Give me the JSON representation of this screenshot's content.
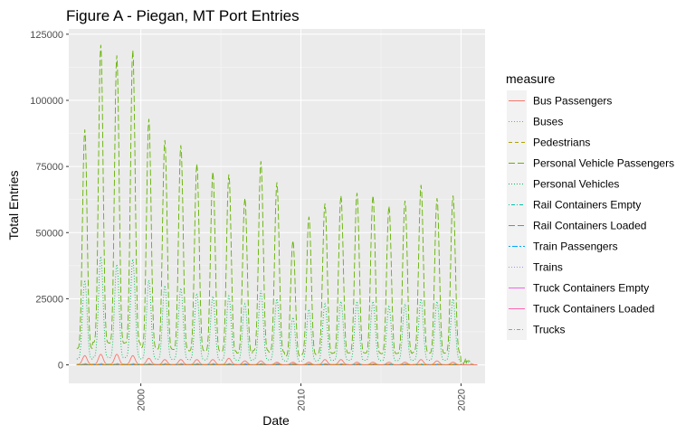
{
  "chart_data": {
    "type": "line",
    "title": "Figure A - Piegan, MT Port Entries",
    "xlabel": "Date",
    "ylabel": "Total Entries",
    "x_range": [
      1995.5,
      2021.5
    ],
    "ylim": [
      -7000,
      127000
    ],
    "x_ticks": [
      {
        "value": 2000,
        "label": "2000"
      },
      {
        "value": 2010,
        "label": "2010"
      },
      {
        "value": 2020,
        "label": "2020"
      }
    ],
    "y_ticks": [
      {
        "value": 0,
        "label": "0"
      },
      {
        "value": 25000,
        "label": "25000"
      },
      {
        "value": 50000,
        "label": "50000"
      },
      {
        "value": 75000,
        "label": "75000"
      },
      {
        "value": 100000,
        "label": "100000"
      },
      {
        "value": 125000,
        "label": "125000"
      }
    ],
    "grid": true,
    "legend": {
      "title": "measure",
      "placement": "right"
    },
    "series": [
      {
        "name": "Bus Passengers",
        "color": "#F8766D",
        "dash": "solid",
        "peaks": [
          {
            "x": 1996.5,
            "y": 3500
          },
          {
            "x": 1997.5,
            "y": 4000
          },
          {
            "x": 1998.5,
            "y": 4000
          },
          {
            "x": 1999.5,
            "y": 3500
          },
          {
            "x": 2000.5,
            "y": 2500
          },
          {
            "x": 2001.5,
            "y": 2000
          },
          {
            "x": 2002.5,
            "y": 2000
          },
          {
            "x": 2003.5,
            "y": 2000
          },
          {
            "x": 2004.5,
            "y": 2000
          },
          {
            "x": 2005.5,
            "y": 2500
          },
          {
            "x": 2006.5,
            "y": 1500
          },
          {
            "x": 2007.5,
            "y": 1500
          },
          {
            "x": 2008.5,
            "y": 1000
          },
          {
            "x": 2009.5,
            "y": 1000
          },
          {
            "x": 2010.5,
            "y": 1000
          },
          {
            "x": 2011.5,
            "y": 2000
          },
          {
            "x": 2012.5,
            "y": 2000
          },
          {
            "x": 2013.5,
            "y": 1000
          },
          {
            "x": 2014.5,
            "y": 1000
          },
          {
            "x": 2015.5,
            "y": 1000
          },
          {
            "x": 2016.5,
            "y": 1000
          },
          {
            "x": 2017.5,
            "y": 2000
          },
          {
            "x": 2018.5,
            "y": 1500
          },
          {
            "x": 2019.5,
            "y": 1000
          },
          {
            "x": 2020.5,
            "y": 0
          }
        ]
      },
      {
        "name": "Buses",
        "color": "#DB8E00",
        "dash": "dotted",
        "peaks": [
          {
            "x": 1996.5,
            "y": 100
          },
          {
            "x": 2008.5,
            "y": 100
          },
          {
            "x": 2020.5,
            "y": 0
          }
        ]
      },
      {
        "name": "Pedestrians",
        "color": "#AEA200",
        "dash": "dashed",
        "peaks": [
          {
            "x": 1996.5,
            "y": 100
          },
          {
            "x": 2008.5,
            "y": 100
          },
          {
            "x": 2020.5,
            "y": 0
          }
        ]
      },
      {
        "name": "Personal Vehicle Passengers",
        "color": "#64B200",
        "dash": "longdash",
        "peaks": [
          {
            "x": 1996.5,
            "y": 89000
          },
          {
            "x": 1997.5,
            "y": 121000
          },
          {
            "x": 1998.5,
            "y": 117000
          },
          {
            "x": 1999.5,
            "y": 119000
          },
          {
            "x": 2000.5,
            "y": 93000
          },
          {
            "x": 2001.5,
            "y": 85000
          },
          {
            "x": 2002.5,
            "y": 83000
          },
          {
            "x": 2003.5,
            "y": 76000
          },
          {
            "x": 2004.5,
            "y": 73000
          },
          {
            "x": 2005.5,
            "y": 72000
          },
          {
            "x": 2006.5,
            "y": 63000
          },
          {
            "x": 2007.5,
            "y": 77000
          },
          {
            "x": 2008.5,
            "y": 69000
          },
          {
            "x": 2009.5,
            "y": 47000
          },
          {
            "x": 2010.5,
            "y": 56000
          },
          {
            "x": 2011.5,
            "y": 61000
          },
          {
            "x": 2012.5,
            "y": 64000
          },
          {
            "x": 2013.5,
            "y": 65000
          },
          {
            "x": 2014.5,
            "y": 64000
          },
          {
            "x": 2015.5,
            "y": 60000
          },
          {
            "x": 2016.5,
            "y": 62000
          },
          {
            "x": 2017.5,
            "y": 68000
          },
          {
            "x": 2018.5,
            "y": 63000
          },
          {
            "x": 2019.5,
            "y": 64000
          },
          {
            "x": 2020.5,
            "y": 7000
          }
        ]
      },
      {
        "name": "Personal Vehicles",
        "color": "#00BD5C",
        "dash": "dotted",
        "peaks": [
          {
            "x": 1996.5,
            "y": 32000
          },
          {
            "x": 1997.5,
            "y": 41000
          },
          {
            "x": 1998.5,
            "y": 38000
          },
          {
            "x": 1999.5,
            "y": 40000
          },
          {
            "x": 2000.5,
            "y": 32000
          },
          {
            "x": 2001.5,
            "y": 30000
          },
          {
            "x": 2002.5,
            "y": 29000
          },
          {
            "x": 2003.5,
            "y": 27000
          },
          {
            "x": 2004.5,
            "y": 26000
          },
          {
            "x": 2005.5,
            "y": 26000
          },
          {
            "x": 2006.5,
            "y": 23000
          },
          {
            "x": 2007.5,
            "y": 28000
          },
          {
            "x": 2008.5,
            "y": 25000
          },
          {
            "x": 2009.5,
            "y": 18000
          },
          {
            "x": 2010.5,
            "y": 21000
          },
          {
            "x": 2011.5,
            "y": 23000
          },
          {
            "x": 2012.5,
            "y": 24000
          },
          {
            "x": 2013.5,
            "y": 24000
          },
          {
            "x": 2014.5,
            "y": 24000
          },
          {
            "x": 2015.5,
            "y": 22000
          },
          {
            "x": 2016.5,
            "y": 23000
          },
          {
            "x": 2017.5,
            "y": 25000
          },
          {
            "x": 2018.5,
            "y": 24000
          },
          {
            "x": 2019.5,
            "y": 25000
          },
          {
            "x": 2020.5,
            "y": 4000
          }
        ]
      },
      {
        "name": "Rail Containers Empty",
        "color": "#00C1A7",
        "dash": "dotdash",
        "peaks": [
          {
            "x": 2008.5,
            "y": 0
          }
        ]
      },
      {
        "name": "Rail Containers Loaded",
        "color": "#00BADE",
        "dash": "longdash",
        "peaks": [
          {
            "x": 2008.5,
            "y": 0
          }
        ]
      },
      {
        "name": "Train Passengers",
        "color": "#00A6FF",
        "dash": "twodash",
        "peaks": [
          {
            "x": 2008.5,
            "y": 0
          }
        ]
      },
      {
        "name": "Trains",
        "color": "#B385FF",
        "dash": "dotted",
        "peaks": [
          {
            "x": 2008.5,
            "y": 0
          }
        ]
      },
      {
        "name": "Truck Containers Empty",
        "color": "#EF67EB",
        "dash": "solid",
        "peaks": [
          {
            "x": 1996.5,
            "y": 300
          },
          {
            "x": 2008.5,
            "y": 300
          },
          {
            "x": 2020.5,
            "y": 200
          }
        ]
      },
      {
        "name": "Truck Containers Loaded",
        "color": "#FF63B6",
        "dash": "solid",
        "peaks": [
          {
            "x": 1996.5,
            "y": 300
          },
          {
            "x": 2008.5,
            "y": 300
          },
          {
            "x": 2020.5,
            "y": 200
          }
        ]
      },
      {
        "name": "Trucks",
        "color": "#FF6C91",
        "dash": "dashdot",
        "peaks": [
          {
            "x": 1996.5,
            "y": 500
          },
          {
            "x": 2008.5,
            "y": 500
          },
          {
            "x": 2020.5,
            "y": 300
          }
        ]
      }
    ]
  }
}
